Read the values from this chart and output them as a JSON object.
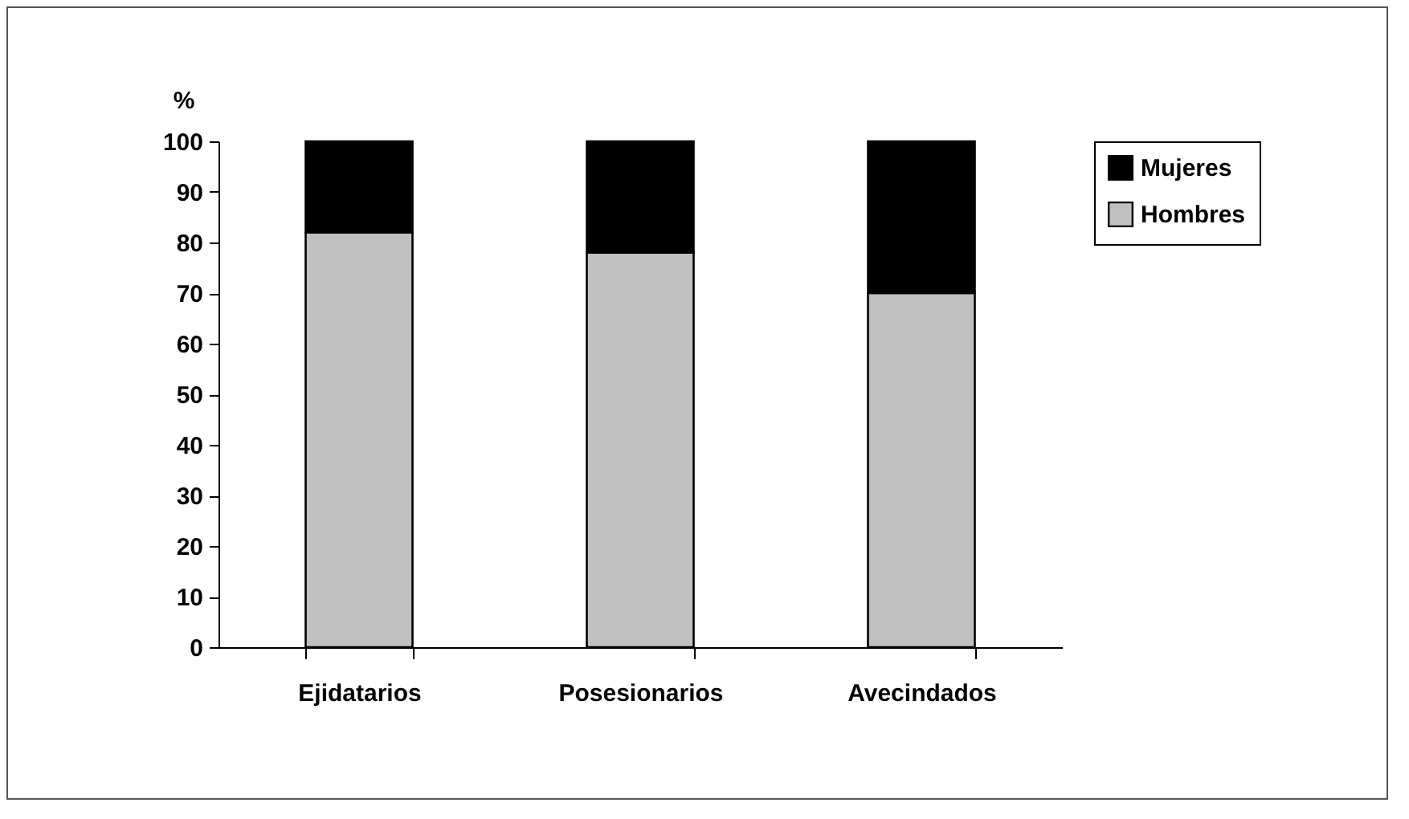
{
  "chart_data": {
    "type": "bar",
    "stacked": true,
    "ylabel": "%",
    "categories": [
      "Ejidatarios",
      "Posesionarios",
      "Avecindados"
    ],
    "series": [
      {
        "name": "Hombres",
        "color": "#c0c0c0",
        "values": [
          82,
          78,
          70
        ]
      },
      {
        "name": "Mujeres",
        "color": "#000000",
        "values": [
          18,
          22,
          30
        ]
      }
    ],
    "ylim": [
      0,
      100
    ],
    "yticks": [
      0,
      10,
      20,
      30,
      40,
      50,
      60,
      70,
      80,
      90,
      100
    ],
    "grid": false,
    "legend": "right"
  }
}
